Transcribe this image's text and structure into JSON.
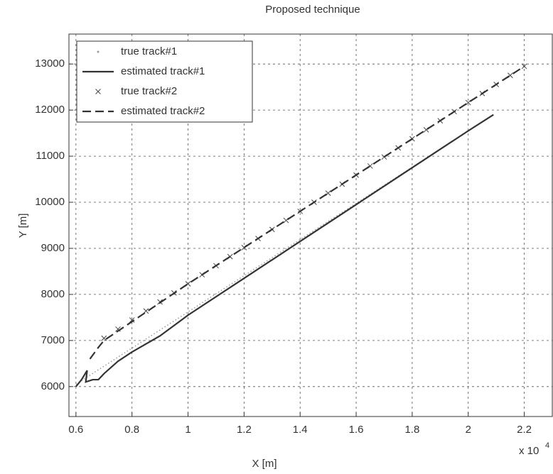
{
  "chart_data": {
    "type": "line",
    "title": "Proposed technique",
    "xlabel": "X [m]",
    "ylabel": "Y [m]",
    "x_multiplier": "x 10",
    "x_multiplier_exp": "4",
    "xlim": [
      0.575,
      2.3
    ],
    "xticks": [
      0.6,
      0.8,
      1,
      1.2,
      1.4,
      1.6,
      1.8,
      2,
      2.2
    ],
    "ylim": [
      5350,
      13650
    ],
    "yticks": [
      6000,
      7000,
      8000,
      9000,
      10000,
      11000,
      12000,
      13000
    ],
    "grid": true,
    "legend": "upper left",
    "series": [
      {
        "name": "true track#1",
        "color": "#9a9a9a",
        "style": "dotted",
        "x": [
          0.6,
          2.09
        ],
        "values": [
          6050,
          11900
        ]
      },
      {
        "name": "estimated track#1",
        "color": "#333333",
        "style": "solid",
        "x": [
          0.6,
          0.62,
          0.64,
          0.635,
          0.66,
          0.68,
          0.7,
          0.75,
          0.8,
          0.9,
          1.0,
          1.2,
          1.4,
          1.6,
          1.8,
          2.0,
          2.09
        ],
        "values": [
          6000,
          6150,
          6350,
          6100,
          6150,
          6150,
          6280,
          6550,
          6750,
          7100,
          7550,
          8350,
          9150,
          9950,
          10750,
          11550,
          11900
        ]
      },
      {
        "name": "true track#2",
        "color": "#444444",
        "style": "x-markers",
        "x": [
          0.7,
          0.75,
          0.8,
          0.85,
          0.9,
          0.95,
          1.0,
          1.05,
          1.1,
          1.15,
          1.2,
          1.25,
          1.3,
          1.35,
          1.4,
          1.45,
          1.5,
          1.55,
          1.6,
          1.65,
          1.7,
          1.75,
          1.8,
          1.85,
          1.9,
          1.95,
          2.0,
          2.05,
          2.1,
          2.15,
          2.2
        ],
        "values": [
          7050,
          7247,
          7443,
          7640,
          7837,
          8033,
          8230,
          8427,
          8623,
          8820,
          9017,
          9213,
          9410,
          9607,
          9803,
          10000,
          10197,
          10393,
          10590,
          10787,
          10983,
          11180,
          11377,
          11573,
          11770,
          11967,
          12163,
          12360,
          12557,
          12753,
          12950
        ]
      },
      {
        "name": "estimated track#2",
        "color": "#333333",
        "style": "dashed",
        "x": [
          0.65,
          0.68,
          0.7,
          1.0,
          1.5,
          2.0,
          2.2
        ],
        "values": [
          6600,
          6850,
          7000,
          8230,
          10197,
          12163,
          12950
        ]
      }
    ]
  }
}
